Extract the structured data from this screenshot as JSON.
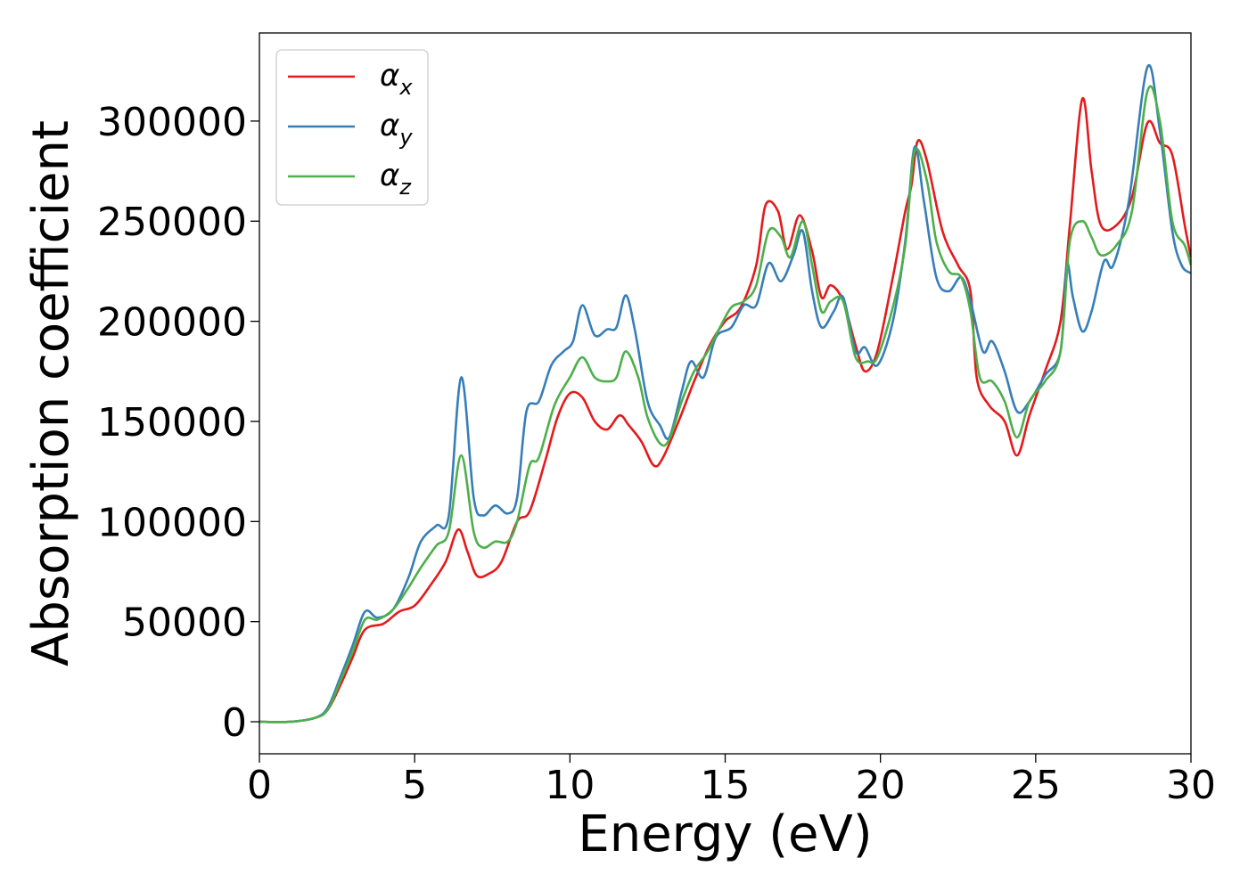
{
  "chart_data": {
    "type": "line",
    "xlabel": "Energy (eV)",
    "ylabel": "Absorption coefficient",
    "xlim": [
      0,
      30
    ],
    "ylim": [
      -16000,
      344000
    ],
    "x_ticks": [
      "0",
      "5",
      "10",
      "15",
      "20",
      "25",
      "30"
    ],
    "y_ticks": [
      "0",
      "50000",
      "100000",
      "150000",
      "200000",
      "250000",
      "300000"
    ],
    "grid": false,
    "legend_position": "top-left",
    "series": [
      {
        "name": "αx",
        "label_base": "α",
        "label_sub": "x",
        "color": "#e41a1c",
        "points": [
          [
            0,
            0
          ],
          [
            1,
            0
          ],
          [
            1.8,
            2000
          ],
          [
            2.2,
            6000
          ],
          [
            2.6,
            18000
          ],
          [
            3.0,
            32000
          ],
          [
            3.4,
            46000
          ],
          [
            4.0,
            49000
          ],
          [
            4.5,
            55000
          ],
          [
            5.0,
            58000
          ],
          [
            5.5,
            68000
          ],
          [
            6.0,
            80000
          ],
          [
            6.4,
            96000
          ],
          [
            6.7,
            85000
          ],
          [
            7.0,
            73000
          ],
          [
            7.4,
            74000
          ],
          [
            7.8,
            80000
          ],
          [
            8.3,
            100000
          ],
          [
            8.7,
            105000
          ],
          [
            9.2,
            130000
          ],
          [
            9.6,
            152000
          ],
          [
            10.0,
            164000
          ],
          [
            10.4,
            162000
          ],
          [
            10.8,
            150000
          ],
          [
            11.2,
            146000
          ],
          [
            11.6,
            153000
          ],
          [
            11.9,
            148000
          ],
          [
            12.3,
            140000
          ],
          [
            12.7,
            128000
          ],
          [
            13.0,
            132000
          ],
          [
            13.5,
            150000
          ],
          [
            14.0,
            170000
          ],
          [
            14.5,
            188000
          ],
          [
            15.0,
            200000
          ],
          [
            15.5,
            207000
          ],
          [
            16.0,
            228000
          ],
          [
            16.3,
            258000
          ],
          [
            16.7,
            255000
          ],
          [
            17.0,
            236000
          ],
          [
            17.4,
            253000
          ],
          [
            17.8,
            235000
          ],
          [
            18.1,
            212000
          ],
          [
            18.4,
            218000
          ],
          [
            18.8,
            210000
          ],
          [
            19.2,
            188000
          ],
          [
            19.5,
            175000
          ],
          [
            19.9,
            185000
          ],
          [
            20.4,
            222000
          ],
          [
            20.8,
            255000
          ],
          [
            21.0,
            268000
          ],
          [
            21.2,
            290000
          ],
          [
            21.5,
            280000
          ],
          [
            22.0,
            245000
          ],
          [
            22.5,
            228000
          ],
          [
            22.9,
            215000
          ],
          [
            23.1,
            172000
          ],
          [
            23.5,
            158000
          ],
          [
            24.0,
            150000
          ],
          [
            24.4,
            133000
          ],
          [
            24.8,
            153000
          ],
          [
            25.3,
            175000
          ],
          [
            25.8,
            200000
          ],
          [
            26.1,
            248000
          ],
          [
            26.5,
            311000
          ],
          [
            26.8,
            275000
          ],
          [
            27.1,
            248000
          ],
          [
            27.6,
            248000
          ],
          [
            28.1,
            262000
          ],
          [
            28.6,
            299000
          ],
          [
            29.0,
            289000
          ],
          [
            29.4,
            283000
          ],
          [
            29.8,
            248000
          ],
          [
            30.0,
            232000
          ]
        ]
      },
      {
        "name": "αy",
        "label_base": "α",
        "label_sub": "y",
        "color": "#377eb8",
        "points": [
          [
            0,
            0
          ],
          [
            1,
            0
          ],
          [
            1.8,
            2000
          ],
          [
            2.2,
            7000
          ],
          [
            2.6,
            22000
          ],
          [
            3.0,
            38000
          ],
          [
            3.4,
            55000
          ],
          [
            3.8,
            52000
          ],
          [
            4.3,
            56000
          ],
          [
            4.8,
            72000
          ],
          [
            5.2,
            90000
          ],
          [
            5.7,
            98000
          ],
          [
            6.1,
            103000
          ],
          [
            6.5,
            172000
          ],
          [
            6.9,
            112000
          ],
          [
            7.2,
            103000
          ],
          [
            7.6,
            108000
          ],
          [
            8.0,
            104000
          ],
          [
            8.3,
            112000
          ],
          [
            8.6,
            155000
          ],
          [
            9.0,
            160000
          ],
          [
            9.4,
            178000
          ],
          [
            9.8,
            185000
          ],
          [
            10.1,
            190000
          ],
          [
            10.4,
            208000
          ],
          [
            10.8,
            193000
          ],
          [
            11.2,
            196000
          ],
          [
            11.5,
            197000
          ],
          [
            11.8,
            213000
          ],
          [
            12.1,
            195000
          ],
          [
            12.5,
            160000
          ],
          [
            12.9,
            148000
          ],
          [
            13.2,
            142000
          ],
          [
            13.6,
            165000
          ],
          [
            13.9,
            180000
          ],
          [
            14.3,
            172000
          ],
          [
            14.7,
            192000
          ],
          [
            15.2,
            197000
          ],
          [
            15.6,
            208000
          ],
          [
            16.0,
            208000
          ],
          [
            16.4,
            229000
          ],
          [
            16.8,
            220000
          ],
          [
            17.2,
            233000
          ],
          [
            17.5,
            245000
          ],
          [
            17.8,
            215000
          ],
          [
            18.1,
            197000
          ],
          [
            18.5,
            205000
          ],
          [
            18.8,
            212000
          ],
          [
            19.2,
            185000
          ],
          [
            19.5,
            187000
          ],
          [
            19.9,
            178000
          ],
          [
            20.4,
            200000
          ],
          [
            20.8,
            240000
          ],
          [
            21.1,
            287000
          ],
          [
            21.4,
            260000
          ],
          [
            21.8,
            222000
          ],
          [
            22.2,
            215000
          ],
          [
            22.6,
            222000
          ],
          [
            22.9,
            210000
          ],
          [
            23.3,
            185000
          ],
          [
            23.6,
            190000
          ],
          [
            24.0,
            175000
          ],
          [
            24.4,
            155000
          ],
          [
            24.8,
            160000
          ],
          [
            25.3,
            173000
          ],
          [
            25.8,
            185000
          ],
          [
            26.0,
            228000
          ],
          [
            26.2,
            212000
          ],
          [
            26.5,
            195000
          ],
          [
            26.8,
            205000
          ],
          [
            27.2,
            230000
          ],
          [
            27.5,
            228000
          ],
          [
            28.0,
            260000
          ],
          [
            28.6,
            327000
          ],
          [
            29.0,
            295000
          ],
          [
            29.4,
            245000
          ],
          [
            29.7,
            228000
          ],
          [
            30.0,
            224000
          ]
        ]
      },
      {
        "name": "αz",
        "label_base": "α",
        "label_sub": "z",
        "color": "#4daf4a",
        "points": [
          [
            0,
            0
          ],
          [
            1,
            0
          ],
          [
            1.8,
            2000
          ],
          [
            2.2,
            6000
          ],
          [
            2.6,
            20000
          ],
          [
            3.0,
            35000
          ],
          [
            3.4,
            51000
          ],
          [
            3.8,
            51000
          ],
          [
            4.3,
            56000
          ],
          [
            4.8,
            67000
          ],
          [
            5.2,
            77000
          ],
          [
            5.7,
            88000
          ],
          [
            6.1,
            95000
          ],
          [
            6.5,
            133000
          ],
          [
            6.9,
            95000
          ],
          [
            7.2,
            87000
          ],
          [
            7.6,
            90000
          ],
          [
            8.0,
            90000
          ],
          [
            8.3,
            100000
          ],
          [
            8.7,
            128000
          ],
          [
            9.0,
            132000
          ],
          [
            9.5,
            158000
          ],
          [
            10.0,
            172000
          ],
          [
            10.4,
            182000
          ],
          [
            10.8,
            172000
          ],
          [
            11.2,
            170000
          ],
          [
            11.5,
            172000
          ],
          [
            11.8,
            185000
          ],
          [
            12.2,
            172000
          ],
          [
            12.5,
            152000
          ],
          [
            12.9,
            139000
          ],
          [
            13.2,
            141000
          ],
          [
            13.6,
            160000
          ],
          [
            14.0,
            175000
          ],
          [
            14.4,
            184000
          ],
          [
            14.8,
            196000
          ],
          [
            15.2,
            207000
          ],
          [
            15.6,
            210000
          ],
          [
            16.0,
            218000
          ],
          [
            16.4,
            245000
          ],
          [
            16.8,
            242000
          ],
          [
            17.1,
            232000
          ],
          [
            17.5,
            250000
          ],
          [
            17.8,
            228000
          ],
          [
            18.1,
            205000
          ],
          [
            18.4,
            210000
          ],
          [
            18.8,
            210000
          ],
          [
            19.2,
            182000
          ],
          [
            19.6,
            180000
          ],
          [
            19.9,
            182000
          ],
          [
            20.4,
            207000
          ],
          [
            20.8,
            238000
          ],
          [
            21.1,
            285000
          ],
          [
            21.5,
            270000
          ],
          [
            21.8,
            240000
          ],
          [
            22.2,
            225000
          ],
          [
            22.6,
            222000
          ],
          [
            22.9,
            205000
          ],
          [
            23.2,
            172000
          ],
          [
            23.6,
            170000
          ],
          [
            24.0,
            160000
          ],
          [
            24.4,
            142000
          ],
          [
            24.8,
            160000
          ],
          [
            25.3,
            170000
          ],
          [
            25.8,
            185000
          ],
          [
            26.1,
            240000
          ],
          [
            26.5,
            250000
          ],
          [
            26.8,
            242000
          ],
          [
            27.1,
            233000
          ],
          [
            27.6,
            238000
          ],
          [
            28.1,
            255000
          ],
          [
            28.6,
            315000
          ],
          [
            29.0,
            300000
          ],
          [
            29.4,
            250000
          ],
          [
            29.8,
            238000
          ],
          [
            30.0,
            228000
          ]
        ]
      }
    ]
  }
}
